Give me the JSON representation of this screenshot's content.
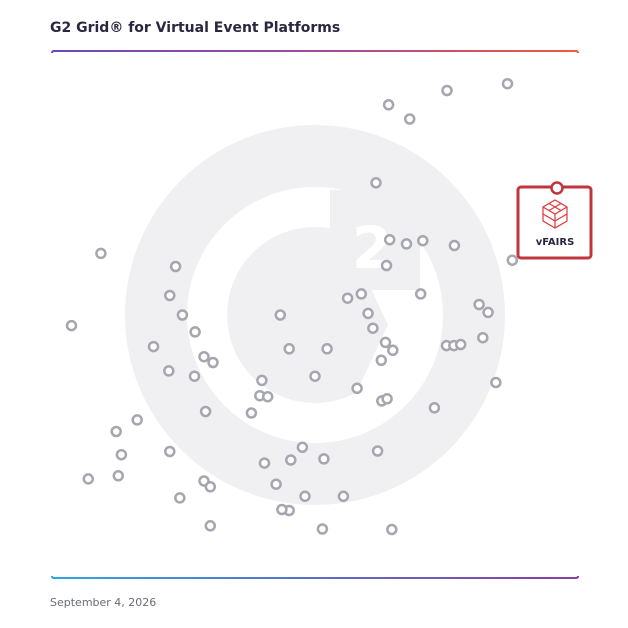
{
  "chart_data": {
    "type": "scatter",
    "title": "G2 Grid® for Virtual Event Platforms",
    "date": "September 4, 2026",
    "xlabel": "",
    "ylabel": "",
    "xlim": [
      0,
      100
    ],
    "ylim": [
      0,
      100
    ],
    "quadrant_divider": {
      "x": 50,
      "y": 50
    },
    "grid": false,
    "watermark_icon": "g2-logo",
    "highlight": {
      "label": "vFAIRS",
      "x": 96.0,
      "y": 74.0,
      "color": "#c0363f"
    },
    "series": [
      {
        "marker_color": "#a6a6b0",
        "points": [
          {
            "x": 86.6,
            "y": 93.8
          },
          {
            "x": 75.1,
            "y": 92.5
          },
          {
            "x": 64.0,
            "y": 89.8
          },
          {
            "x": 68.0,
            "y": 87.1
          },
          {
            "x": 61.6,
            "y": 75.0
          },
          {
            "x": 64.2,
            "y": 64.2
          },
          {
            "x": 67.4,
            "y": 63.4
          },
          {
            "x": 70.5,
            "y": 64.0
          },
          {
            "x": 76.5,
            "y": 63.1
          },
          {
            "x": 87.5,
            "y": 60.3
          },
          {
            "x": 63.6,
            "y": 59.3
          },
          {
            "x": 56.2,
            "y": 53.1
          },
          {
            "x": 58.8,
            "y": 53.9
          },
          {
            "x": 70.1,
            "y": 53.9
          },
          {
            "x": 81.2,
            "y": 51.9
          },
          {
            "x": 82.9,
            "y": 50.4
          },
          {
            "x": 60.1,
            "y": 50.2
          },
          {
            "x": 61.0,
            "y": 47.4
          },
          {
            "x": 63.4,
            "y": 44.7
          },
          {
            "x": 64.8,
            "y": 43.2
          },
          {
            "x": 75.0,
            "y": 44.1
          },
          {
            "x": 76.4,
            "y": 44.1
          },
          {
            "x": 77.7,
            "y": 44.3
          },
          {
            "x": 81.9,
            "y": 45.6
          },
          {
            "x": 62.6,
            "y": 41.3
          },
          {
            "x": 58.0,
            "y": 36.0
          },
          {
            "x": 62.7,
            "y": 33.6
          },
          {
            "x": 63.7,
            "y": 34.0
          },
          {
            "x": 72.7,
            "y": 32.3
          },
          {
            "x": 84.4,
            "y": 37.1
          },
          {
            "x": 61.9,
            "y": 24.1
          },
          {
            "x": 55.4,
            "y": 15.5
          },
          {
            "x": 64.6,
            "y": 9.2
          },
          {
            "x": 51.4,
            "y": 9.3
          },
          {
            "x": 9.3,
            "y": 61.6
          },
          {
            "x": 23.5,
            "y": 59.1
          },
          {
            "x": 22.4,
            "y": 53.6
          },
          {
            "x": 3.7,
            "y": 47.9
          },
          {
            "x": 24.8,
            "y": 49.9
          },
          {
            "x": 43.4,
            "y": 49.9
          },
          {
            "x": 27.2,
            "y": 46.7
          },
          {
            "x": 19.3,
            "y": 43.9
          },
          {
            "x": 28.9,
            "y": 42.0
          },
          {
            "x": 30.6,
            "y": 40.9
          },
          {
            "x": 45.1,
            "y": 43.5
          },
          {
            "x": 52.3,
            "y": 43.5
          },
          {
            "x": 22.2,
            "y": 39.3
          },
          {
            "x": 27.1,
            "y": 38.3
          },
          {
            "x": 50.0,
            "y": 38.3
          },
          {
            "x": 39.9,
            "y": 37.5
          },
          {
            "x": 39.5,
            "y": 34.6
          },
          {
            "x": 41.0,
            "y": 34.4
          },
          {
            "x": 29.2,
            "y": 31.6
          },
          {
            "x": 37.9,
            "y": 31.3
          },
          {
            "x": 16.2,
            "y": 30.0
          },
          {
            "x": 12.2,
            "y": 27.8
          },
          {
            "x": 22.4,
            "y": 24.0
          },
          {
            "x": 47.6,
            "y": 24.8
          },
          {
            "x": 13.2,
            "y": 23.4
          },
          {
            "x": 40.4,
            "y": 21.8
          },
          {
            "x": 45.4,
            "y": 22.4
          },
          {
            "x": 51.7,
            "y": 22.6
          },
          {
            "x": 12.6,
            "y": 19.4
          },
          {
            "x": 6.9,
            "y": 18.8
          },
          {
            "x": 28.9,
            "y": 18.4
          },
          {
            "x": 30.1,
            "y": 17.3
          },
          {
            "x": 42.6,
            "y": 17.8
          },
          {
            "x": 24.3,
            "y": 15.2
          },
          {
            "x": 48.1,
            "y": 15.5
          },
          {
            "x": 45.1,
            "y": 12.8
          },
          {
            "x": 30.1,
            "y": 9.9
          },
          {
            "x": 43.7,
            "y": 13.0
          }
        ]
      }
    ]
  }
}
